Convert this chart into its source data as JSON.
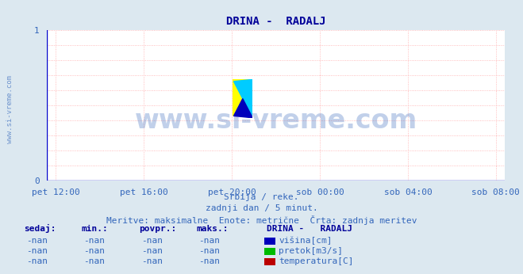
{
  "title": "DRINA -  RADALJ",
  "bg_color": "#dce8f0",
  "plot_bg_color": "#ffffff",
  "grid_color": "#ffaaaa",
  "title_color": "#000099",
  "title_fontsize": 10,
  "watermark_text": "www.si-vreme.com",
  "watermark_color": "#3366bb",
  "watermark_fontsize": 24,
  "watermark_alpha": 0.3,
  "ylabel_text": "www.si-vreme.com",
  "ylabel_color": "#3366bb",
  "ylabel_fontsize": 6.5,
  "subtitle_line1": "Srbija / reke.",
  "subtitle_line2": "zadnji dan / 5 minut.",
  "subtitle_line3": "Meritve: maksimalne  Enote: metrične  Črta: zadnja meritev",
  "subtitle_color": "#3366bb",
  "subtitle_fontsize": 8,
  "ylim": [
    0,
    1
  ],
  "yticks": [
    0,
    1
  ],
  "xtick_labels": [
    "pet 12:00",
    "pet 16:00",
    "pet 20:00",
    "sob 00:00",
    "sob 04:00",
    "sob 08:00"
  ],
  "spine_color_blue": "#0000cc",
  "spine_color_red": "#cc0000",
  "xtick_color": "#3366bb",
  "xtick_fontsize": 8,
  "ytick_color": "#3366bb",
  "ytick_fontsize": 8,
  "table_header": [
    "sedaj:",
    "min.:",
    "povpr.:",
    "maks.:"
  ],
  "table_col5_header": "DRINA -   RADALJ",
  "table_rows": [
    [
      "-nan",
      "-nan",
      "-nan",
      "-nan",
      "#0000bb",
      "višina[cm]"
    ],
    [
      "-nan",
      "-nan",
      "-nan",
      "-nan",
      "#00bb00",
      "pretok[m3/s]"
    ],
    [
      "-nan",
      "-nan",
      "-nan",
      "-nan",
      "#bb0000",
      "temperatura[C]"
    ]
  ],
  "table_text_color": "#3366bb",
  "table_fontsize": 8,
  "table_header_color": "#000099",
  "fig_width": 6.59,
  "fig_height": 3.46,
  "dpi": 100
}
